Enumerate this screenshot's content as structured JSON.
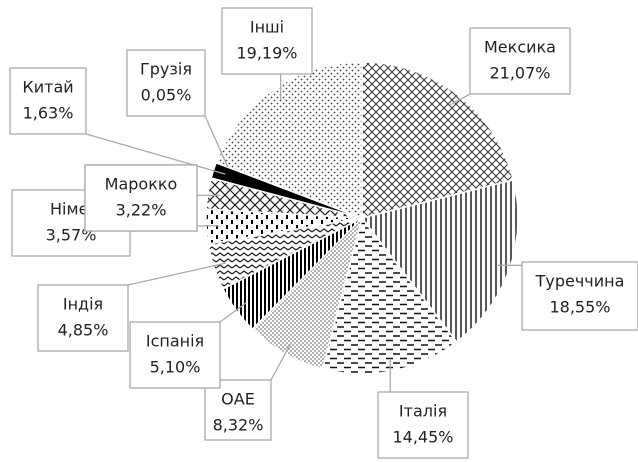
{
  "chart_data": {
    "type": "pie",
    "categories": [
      "Мексика",
      "Туреччина",
      "Італія",
      "ОАЕ",
      "Іспанія",
      "Індія",
      "Німеччина",
      "Марокко",
      "Китай",
      "Грузія",
      "Інші"
    ],
    "values": [
      21.07,
      18.55,
      14.45,
      8.32,
      5.1,
      4.85,
      3.57,
      3.22,
      1.63,
      0.05,
      19.19
    ],
    "value_labels": [
      "21,07%",
      "18,55%",
      "14,45%",
      "8,32%",
      "5,10%",
      "4,85%",
      "3,57%",
      "3,22%",
      "1,63%",
      "0,05%",
      "19,19%"
    ]
  }
}
